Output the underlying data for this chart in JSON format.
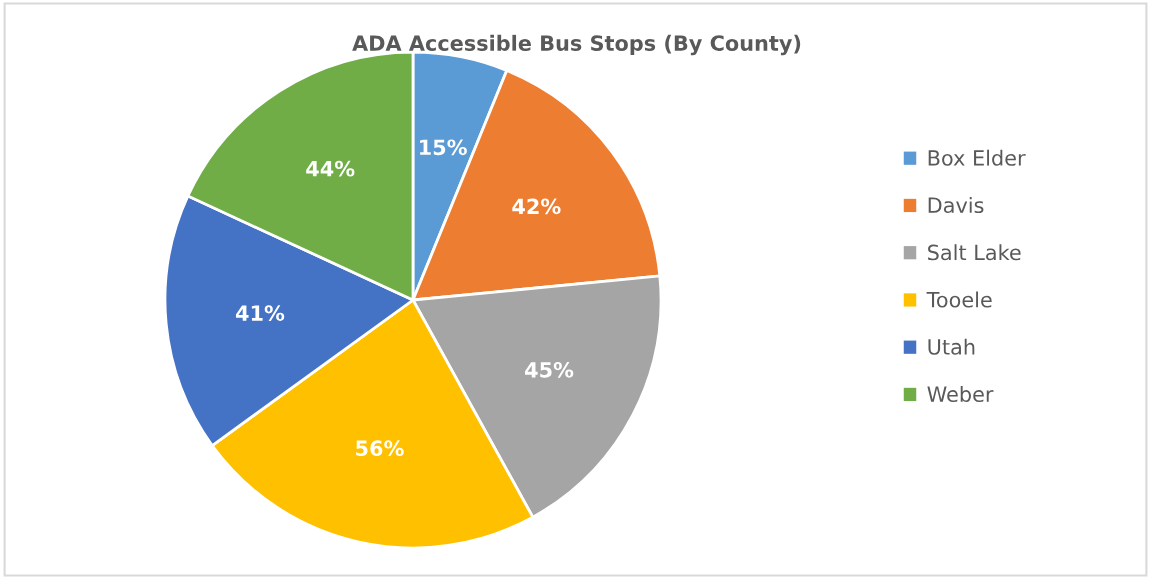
{
  "chart_data": {
    "type": "pie",
    "title": "ADA Accessible Bus Stops (By County)",
    "categories": [
      "Box Elder",
      "Davis",
      "Salt Lake",
      "Tooele",
      "Utah",
      "Weber"
    ],
    "values": [
      15,
      42,
      45,
      56,
      41,
      44
    ],
    "colors": [
      "#5b9bd5",
      "#ed7d31",
      "#a5a5a5",
      "#ffc000",
      "#4472c4",
      "#70ad47"
    ],
    "value_labels": [
      "15%",
      "42%",
      "45%",
      "56%",
      "41%",
      "44%"
    ],
    "legend": "right"
  }
}
